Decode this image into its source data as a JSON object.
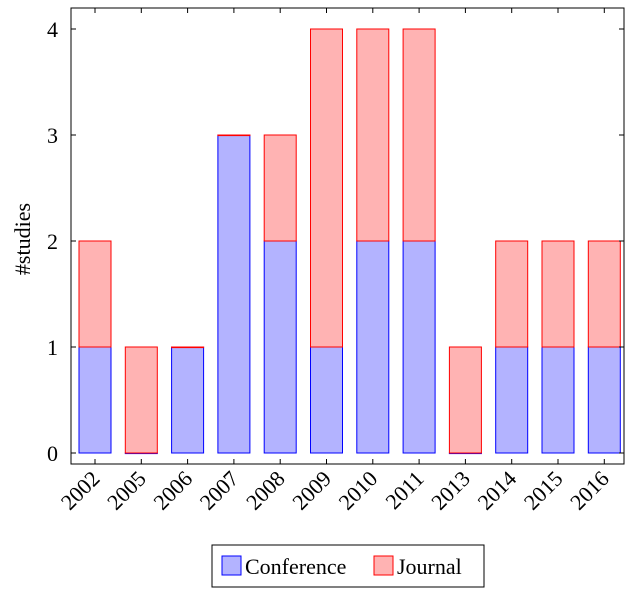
{
  "chart_data": {
    "type": "bar",
    "stacked": true,
    "categories": [
      "2002",
      "2005",
      "2006",
      "2007",
      "2008",
      "2009",
      "2010",
      "2011",
      "2013",
      "2014",
      "2015",
      "2016"
    ],
    "series": [
      {
        "name": "Conference",
        "values": [
          1,
          0,
          1,
          3,
          2,
          1,
          2,
          2,
          0,
          1,
          1,
          1
        ],
        "fill": "#b3b3ff",
        "stroke": "#0000ff"
      },
      {
        "name": "Journal",
        "values": [
          1,
          1,
          0,
          0,
          1,
          3,
          2,
          2,
          1,
          1,
          1,
          1
        ],
        "fill": "#ffb3b3",
        "stroke": "#ff0000"
      }
    ],
    "xlabel": "",
    "ylabel": "#studies",
    "ylim": [
      0,
      4.2
    ],
    "yticks": [
      "0",
      "1",
      "2",
      "3",
      "4"
    ],
    "grid": false,
    "legend_position": "bottom-center"
  }
}
